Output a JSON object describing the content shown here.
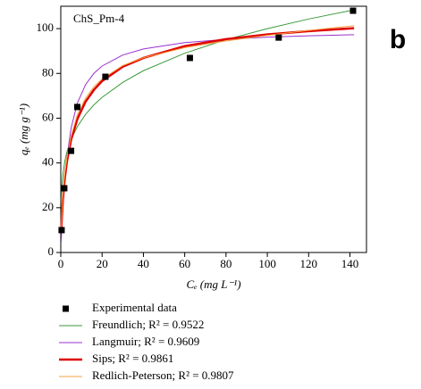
{
  "chart_data": {
    "type": "scatter",
    "title": "ChS_Pm-4",
    "panel_label": "b",
    "x_label": "Cₑ (mg L⁻¹)",
    "y_label": "qₑ (mg g⁻¹)",
    "xlim": [
      0,
      148
    ],
    "ylim": [
      0,
      110
    ],
    "xticks": [
      0,
      20,
      40,
      60,
      80,
      100,
      120,
      140
    ],
    "yticks": [
      0,
      20,
      40,
      60,
      80,
      100
    ],
    "points": {
      "name": "Experimental data",
      "color": "#000000",
      "x": [
        0.4,
        1.7,
        5,
        8,
        21.6,
        62.5,
        105.5,
        141.5
      ],
      "values": [
        10,
        28.7,
        45.4,
        65,
        78.5,
        86.9,
        96,
        108
      ]
    },
    "curve_x": [
      0.2,
      0.5,
      1,
      2,
      3,
      5,
      8,
      12,
      16,
      20,
      30,
      40,
      60,
      80,
      100,
      120,
      142
    ],
    "curves": [
      {
        "name": "Freundlich; R² = 0.9522",
        "color": "#3c9a3c",
        "line_width": 1,
        "values": [
          24.3,
          29.9,
          35,
          41,
          45,
          50.5,
          56.2,
          61.7,
          65.9,
          69.3,
          76,
          81.2,
          89,
          95.1,
          100,
          104.3,
          108.4
        ]
      },
      {
        "name": "Langmuir; R² = 0.9609",
        "color": "#9b30d0",
        "line_width": 1,
        "values": [
          4.8,
          11.1,
          20,
          33.3,
          42.9,
          55.6,
          66.7,
          75,
          80,
          83.3,
          88.2,
          90.9,
          93.75,
          95.2,
          96.2,
          96.8,
          97.3
        ]
      },
      {
        "name": "Sips; R² = 0.9861",
        "color": "#e00000",
        "line_width": 2.5,
        "values": [
          8.9,
          15.7,
          23.5,
          33.7,
          40.8,
          50.4,
          59.6,
          67.4,
          72.6,
          76.6,
          83,
          86.9,
          92.2,
          95.3,
          97.4,
          98.9,
          100.2
        ]
      },
      {
        "name": "Redlich-Peterson; R² = 0.9807",
        "color": "#f5a040",
        "line_width": 1,
        "values": [
          9.5,
          17,
          25,
          35.5,
          42.5,
          52,
          61.5,
          69,
          74,
          77.5,
          83.5,
          87,
          91.5,
          94.5,
          97,
          99.2,
          101.3
        ]
      }
    ]
  }
}
